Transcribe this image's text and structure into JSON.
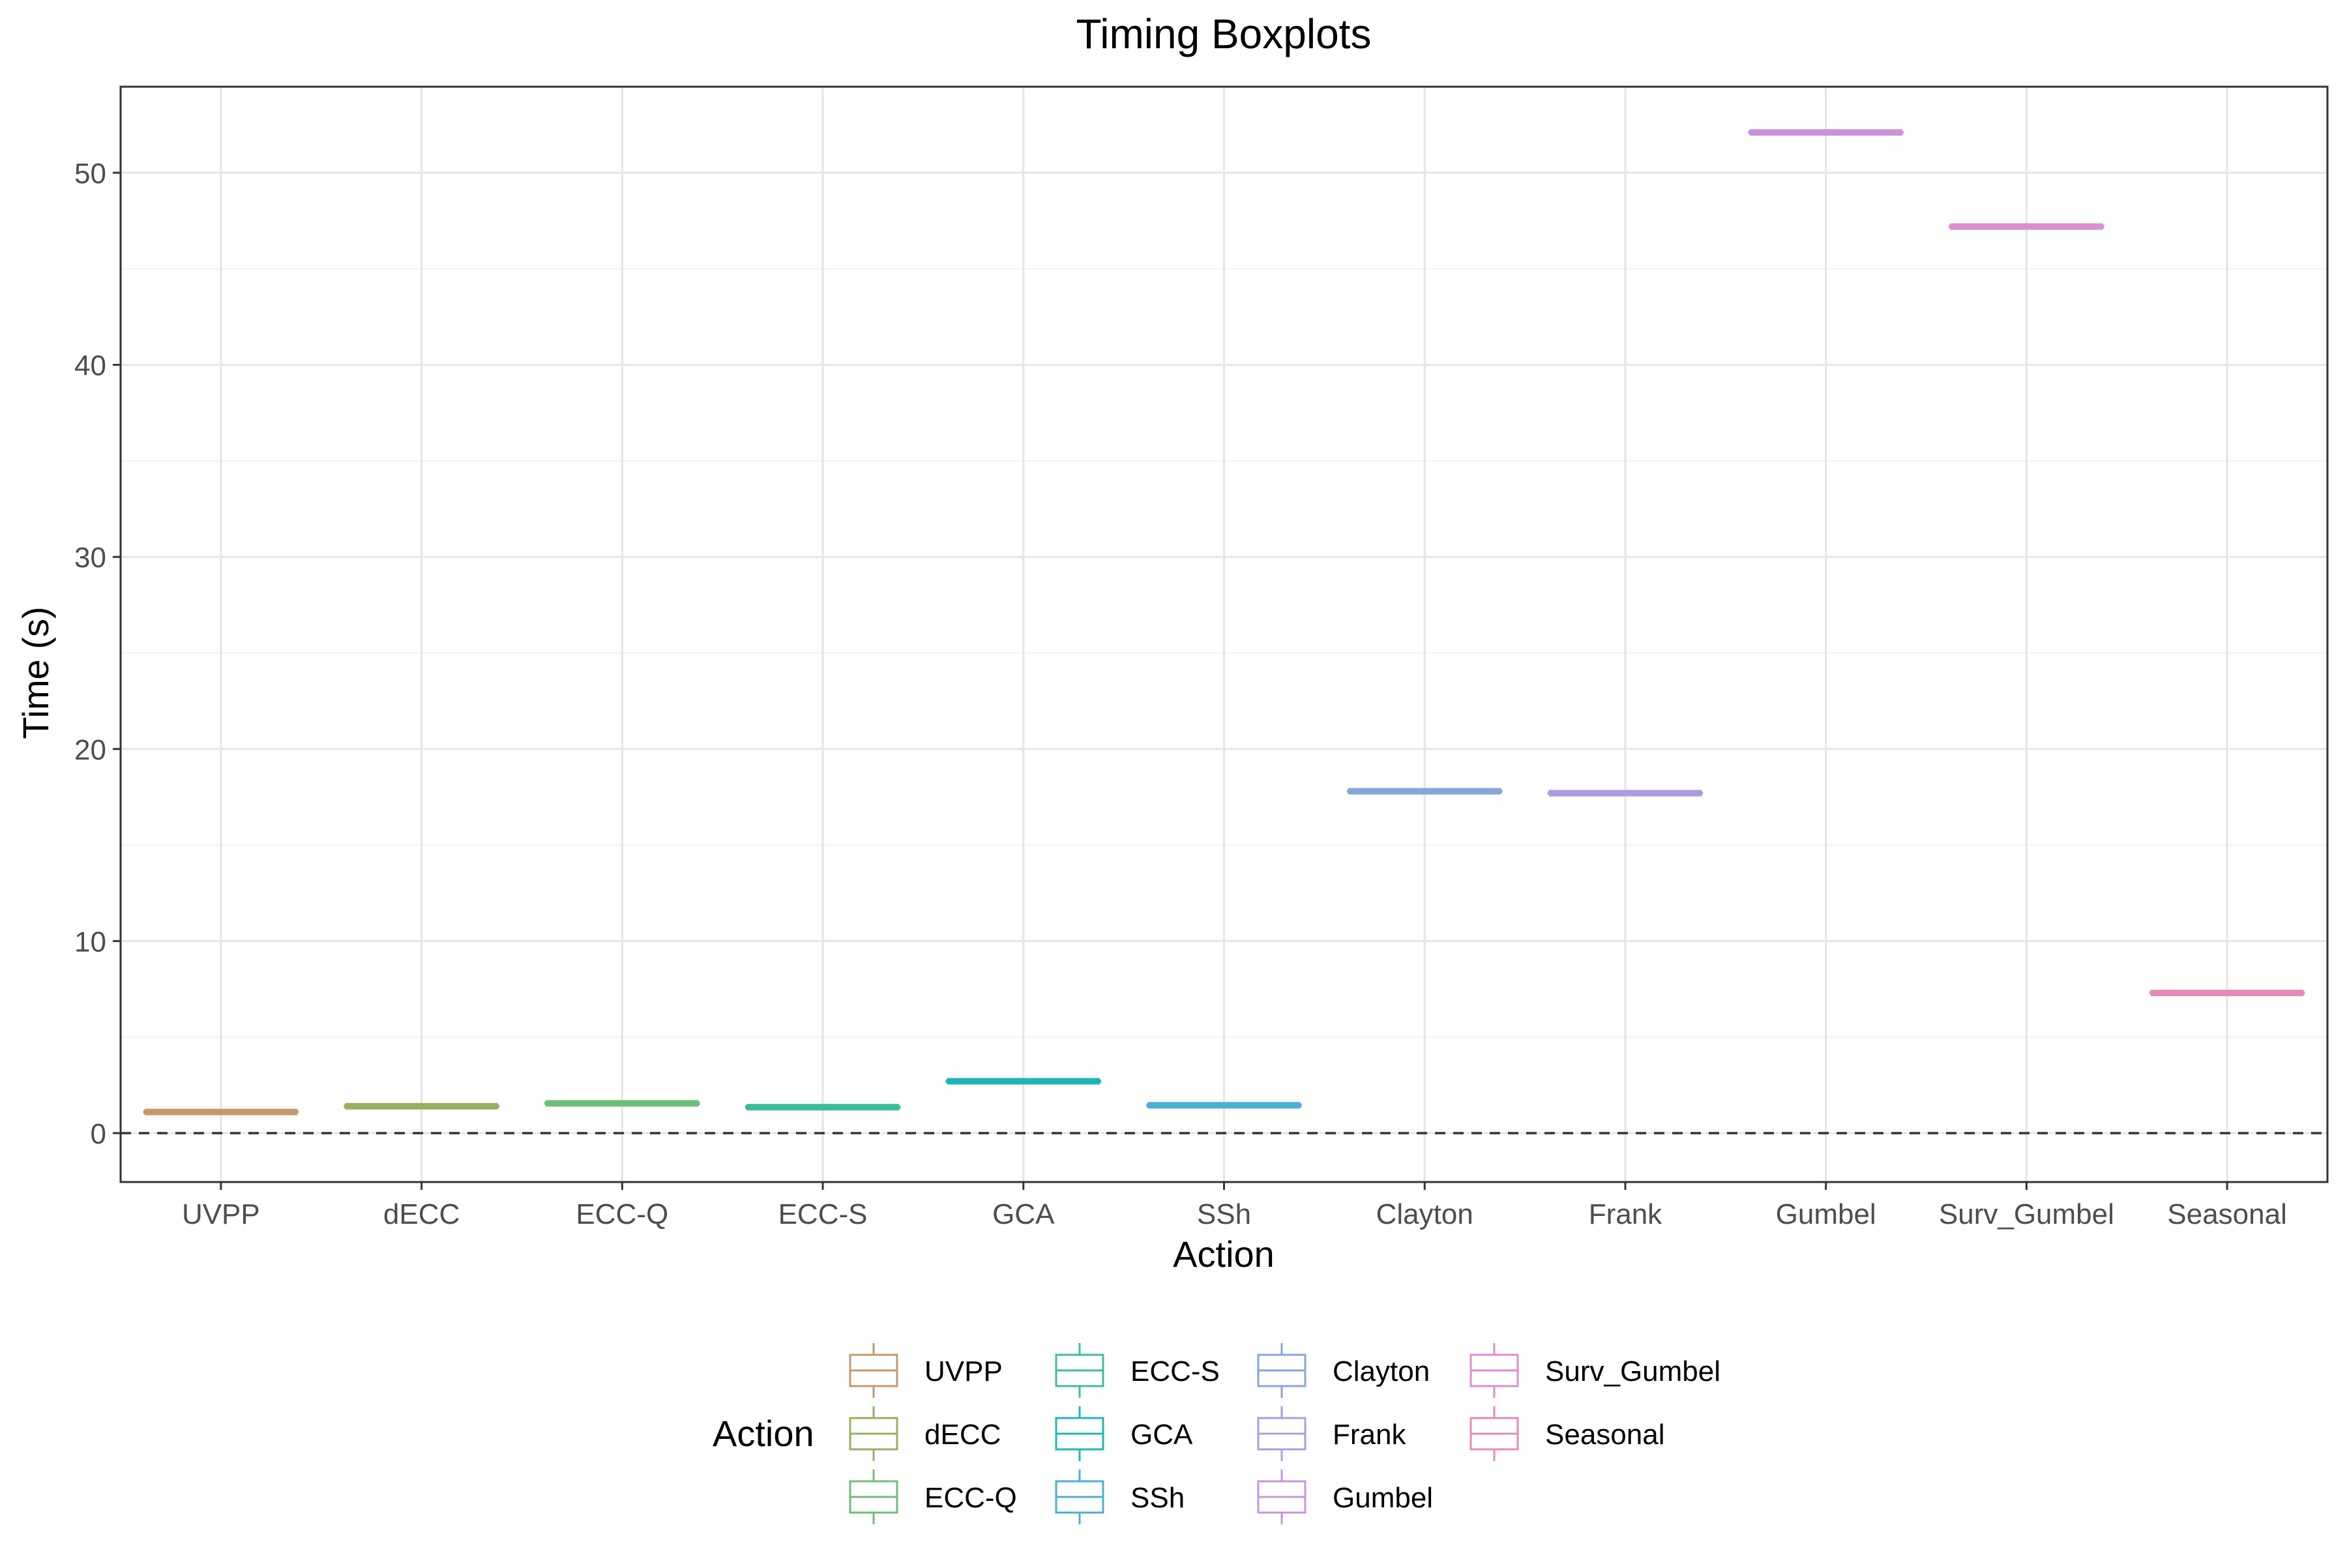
{
  "chart_data": {
    "type": "boxplot",
    "title": "Timing Boxplots",
    "xlabel": "Action",
    "ylabel": "Time (s)",
    "ylim": [
      -2.5,
      55
    ],
    "yticks": [
      0,
      10,
      20,
      30,
      40,
      50
    ],
    "grid": true,
    "reference_line": {
      "y": 0,
      "style": "dashed"
    },
    "categories": [
      "UVPP",
      "dECC",
      "ECC-Q",
      "ECC-S",
      "GCA",
      "SSh",
      "Clayton",
      "Frank",
      "Gumbel",
      "Surv_Gumbel",
      "Seasonal"
    ],
    "values": [
      1.1,
      1.4,
      1.55,
      1.35,
      2.7,
      1.45,
      17.8,
      17.7,
      52.1,
      47.2,
      7.3
    ],
    "colors": [
      "#C49A6C",
      "#97B160",
      "#6EBE77",
      "#3DBC9D",
      "#1FB5B5",
      "#4BAFD0",
      "#86A6DB",
      "#AC9CDE",
      "#C994DB",
      "#DB8FD0",
      "#E38BB8"
    ],
    "legend": {
      "title": "Action",
      "placement": "bottom",
      "entries": [
        "UVPP",
        "dECC",
        "ECC-Q",
        "ECC-S",
        "GCA",
        "SSh",
        "Clayton",
        "Frank",
        "Gumbel",
        "Surv_Gumbel",
        "Seasonal"
      ]
    }
  }
}
